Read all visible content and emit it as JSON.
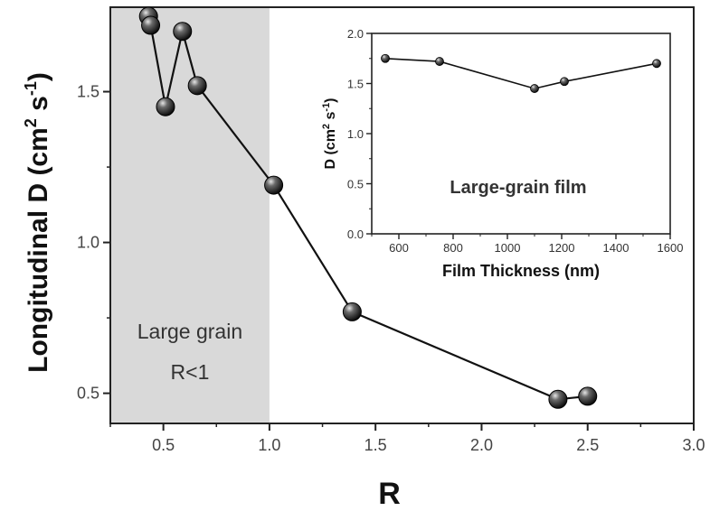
{
  "chart_data": [
    {
      "type": "line",
      "title": "",
      "xlabel": "R",
      "ylabel": "Longitudinal D (cm",
      "ylabel_unit_sup1": "2",
      "ylabel_unit_mid": " s",
      "ylabel_unit_sup2": "-1",
      "ylabel_unit_end": ")",
      "xlim": [
        0.25,
        3.0
      ],
      "ylim": [
        0.4,
        1.78
      ],
      "xticks": [
        0.5,
        1.0,
        1.5,
        2.0,
        2.5,
        3.0
      ],
      "xtick_labels": [
        "0.5",
        "1.0",
        "1.5",
        "2.0",
        "2.5",
        "3.0"
      ],
      "yticks": [
        0.5,
        1.0,
        1.5
      ],
      "ytick_labels": [
        "0.5",
        "1.0",
        "1.5"
      ],
      "grid": false,
      "shaded_region": {
        "x_start": 0.25,
        "x_end": 1.0,
        "color": "#d9d9d9"
      },
      "annotations": [
        "Large grain",
        "R<1"
      ],
      "series": [
        {
          "x": [
            0.43,
            0.44,
            0.51,
            0.59,
            0.66,
            1.02,
            1.39,
            2.36,
            2.5
          ],
          "y": [
            1.75,
            1.72,
            1.45,
            1.7,
            1.52,
            1.19,
            0.77,
            0.48,
            0.49
          ],
          "color": "#111111"
        }
      ]
    },
    {
      "type": "line",
      "title": "",
      "xlabel": "Film Thickness (nm)",
      "ylabel": "D (cm",
      "ylabel_unit_sup1": "2",
      "ylabel_unit_mid": " s",
      "ylabel_unit_sup2": "-1",
      "ylabel_unit_end": ")",
      "xlim": [
        500,
        1600
      ],
      "ylim": [
        0.0,
        2.0
      ],
      "xticks": [
        600,
        800,
        1000,
        1200,
        1400,
        1600
      ],
      "xtick_labels": [
        "600",
        "800",
        "1000",
        "1200",
        "1400",
        "1600"
      ],
      "yticks": [
        0.0,
        0.5,
        1.0,
        1.5,
        2.0
      ],
      "ytick_labels": [
        "0.0",
        "0.5",
        "1.0",
        "1.5",
        "2.0"
      ],
      "grid": false,
      "annotations": [
        "Large-grain film"
      ],
      "series": [
        {
          "x": [
            550,
            750,
            1100,
            1210,
            1550
          ],
          "y": [
            1.75,
            1.72,
            1.45,
            1.52,
            1.7
          ],
          "color": "#111111"
        }
      ]
    }
  ]
}
